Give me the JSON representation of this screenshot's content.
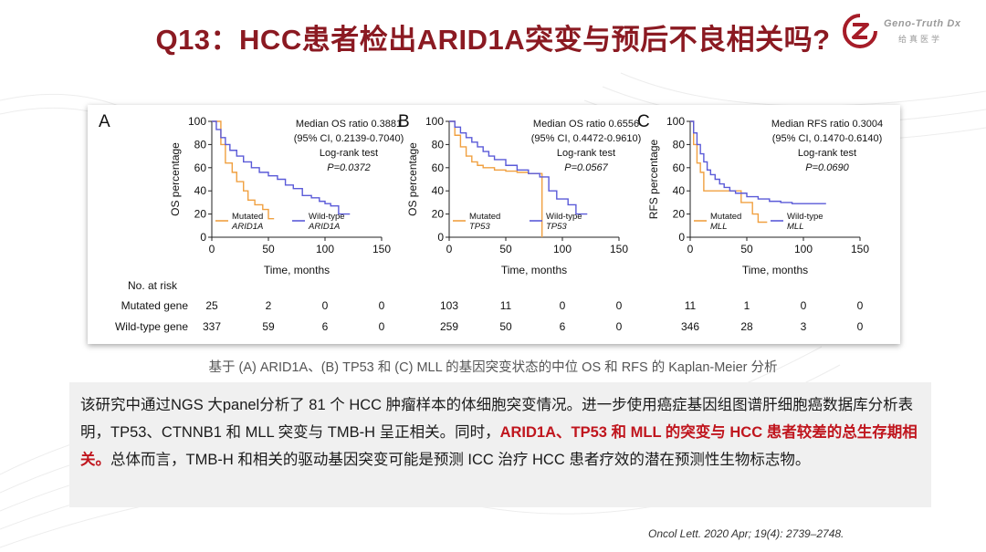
{
  "slide": {
    "title": "Q13：HCC患者检出ARID1A突变与预后不良相关吗?",
    "logo": {
      "name": "Geno-Truth Dx",
      "sub": "给真医学",
      "color": "#a61c28"
    },
    "caption": "基于 (A) ARID1A、(B) TP53 和 (C) MLL 的基因突变状态的中位 OS 和 RFS 的 Kaplan-Meier 分析",
    "paragraph": {
      "pre": "该研究中通过NGS 大panel分析了 81 个 HCC 肿瘤样本的体细胞突变情况。进一步使用癌症基因组图谱肝细胞癌数据库分析表明，TP53、CTNNB1 和 MLL 突变与 TMB-H 呈正相关。同时，",
      "highlight": "ARID1A、TP53 和 MLL 的突变与 HCC 患者较差的总生存期相关。",
      "post": "总体而言，TMB-H 和相关的驱动基因突变可能是预测 ICC 治疗 HCC 患者疗效的潜在预测性生物标志物。"
    },
    "reference": "Oncol Lett. 2020 Apr; 19(4): 2739–2748."
  },
  "chart_data": [
    {
      "type": "line",
      "panel": "A",
      "ylabel": "OS percentage",
      "xlabel": "Time, months",
      "xlim": [
        0,
        150
      ],
      "ylim": [
        0,
        100
      ],
      "xticks": [
        "0",
        "50",
        "100",
        "150"
      ],
      "yticks": [
        "0",
        "20",
        "40",
        "60",
        "80",
        "100"
      ],
      "annotation": [
        "Median OS ratio 0.3881",
        "(95% CI, 0.2139-0.7040)",
        "Log-rank test",
        "P=0.0372"
      ],
      "legend": [
        "Mutated",
        "ARID1A",
        "Wild-type",
        "ARID1A"
      ],
      "colors": {
        "mutated": "#f0a040",
        "wildtype": "#5a5ad8"
      },
      "series": [
        {
          "name": "Mutated ARID1A",
          "x": [
            0,
            8,
            12,
            18,
            22,
            28,
            32,
            38,
            45,
            50,
            55
          ],
          "y": [
            100,
            80,
            64,
            56,
            48,
            40,
            32,
            28,
            24,
            16,
            16
          ]
        },
        {
          "name": "Wild-type ARID1A",
          "x": [
            0,
            4,
            8,
            12,
            16,
            22,
            28,
            35,
            42,
            50,
            58,
            65,
            72,
            80,
            88,
            95,
            100,
            105,
            112,
            122
          ],
          "y": [
            100,
            93,
            86,
            80,
            75,
            70,
            65,
            60,
            56,
            53,
            50,
            45,
            42,
            36,
            34,
            31,
            29,
            27,
            20,
            20
          ]
        }
      ],
      "risk": {
        "label": "No. at risk",
        "rows": [
          "Mutated gene",
          "Wild-type gene"
        ],
        "mutated": [
          "25",
          "2",
          "0",
          "0"
        ],
        "wildtype": [
          "337",
          "59",
          "6",
          "0"
        ]
      }
    },
    {
      "type": "line",
      "panel": "B",
      "ylabel": "OS percentage",
      "xlabel": "Time, months",
      "xlim": [
        0,
        150
      ],
      "ylim": [
        0,
        100
      ],
      "xticks": [
        "0",
        "50",
        "100",
        "150"
      ],
      "yticks": [
        "0",
        "20",
        "40",
        "60",
        "80",
        "100"
      ],
      "annotation": [
        "Median OS ratio 0.6556",
        "(95% CI, 0.4472-0.9610)",
        "Log-rank test",
        "P=0.0567"
      ],
      "legend": [
        "Mutated",
        "TP53",
        "Wild-type",
        "TP53"
      ],
      "colors": {
        "mutated": "#f0a040",
        "wildtype": "#5a5ad8"
      },
      "series": [
        {
          "name": "Mutated TP53",
          "x": [
            0,
            5,
            10,
            15,
            20,
            25,
            30,
            40,
            50,
            60,
            70,
            80,
            82
          ],
          "y": [
            100,
            88,
            78,
            70,
            65,
            62,
            60,
            58,
            57,
            56,
            55,
            55,
            0
          ]
        },
        {
          "name": "Wild-type TP53",
          "x": [
            0,
            5,
            10,
            15,
            20,
            25,
            30,
            35,
            40,
            50,
            60,
            70,
            80,
            88,
            95,
            105,
            112,
            122
          ],
          "y": [
            100,
            95,
            90,
            86,
            82,
            78,
            74,
            70,
            67,
            62,
            58,
            55,
            52,
            40,
            33,
            28,
            20,
            20
          ]
        }
      ],
      "risk": {
        "label": "",
        "rows": [],
        "mutated": [
          "103",
          "11",
          "0",
          "0"
        ],
        "wildtype": [
          "259",
          "50",
          "6",
          "0"
        ]
      }
    },
    {
      "type": "line",
      "panel": "C",
      "ylabel": "RFS percentage",
      "xlabel": "Time, months",
      "xlim": [
        0,
        150
      ],
      "ylim": [
        0,
        100
      ],
      "xticks": [
        "0",
        "50",
        "100",
        "150"
      ],
      "yticks": [
        "0",
        "20",
        "40",
        "60",
        "80",
        "100"
      ],
      "annotation": [
        "Median RFS ratio 0.3004",
        "(95% CI, 0.1470-0.6140)",
        "Log-rank test",
        "P=0.0690"
      ],
      "legend": [
        "Mutated",
        "MLL",
        "Wild-type",
        "MLL"
      ],
      "colors": {
        "mutated": "#f0a040",
        "wildtype": "#5a5ad8"
      },
      "series": [
        {
          "name": "Mutated MLL",
          "x": [
            0,
            3,
            6,
            9,
            12,
            30,
            45,
            55,
            60,
            68
          ],
          "y": [
            100,
            80,
            64,
            56,
            40,
            40,
            30,
            20,
            13,
            13
          ]
        },
        {
          "name": "Wild-type MLL",
          "x": [
            0,
            3,
            6,
            9,
            12,
            15,
            18,
            22,
            26,
            30,
            35,
            40,
            50,
            60,
            70,
            80,
            90,
            100,
            120
          ],
          "y": [
            100,
            90,
            80,
            72,
            65,
            58,
            54,
            50,
            46,
            43,
            40,
            38,
            35,
            33,
            31,
            30,
            29,
            29,
            29
          ]
        }
      ],
      "risk": {
        "label": "",
        "rows": [],
        "mutated": [
          "11",
          "1",
          "0",
          "0"
        ],
        "wildtype": [
          "346",
          "28",
          "3",
          "0"
        ]
      }
    }
  ]
}
